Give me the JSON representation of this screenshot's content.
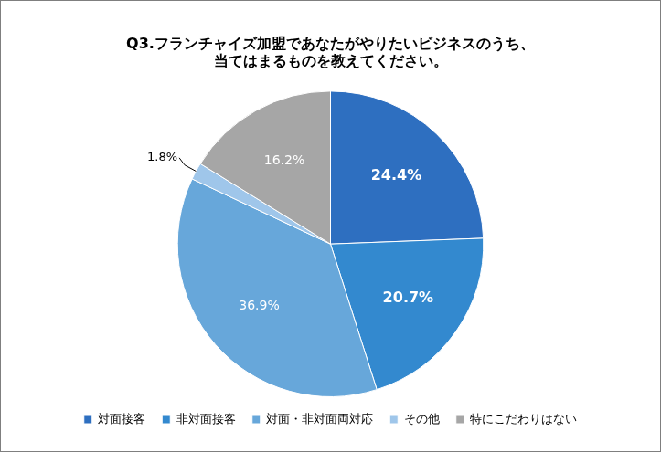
{
  "chart_data": {
    "type": "pie",
    "title": "Q3.フランチャイズ加盟であなたがやりたいビジネスのうち、\n当てはまるものを教えてください。",
    "categories": [
      "対面接客",
      "非対面接客",
      "対面・非対面両対応",
      "その他",
      "特にこだわりはない"
    ],
    "values": [
      24.4,
      20.7,
      36.9,
      1.8,
      16.2
    ],
    "value_labels": [
      "24.4%",
      "20.7%",
      "36.9%",
      "1.8%",
      "16.2%"
    ],
    "colors": [
      "#2e6fc0",
      "#3389cf",
      "#67a7da",
      "#9fc6ea",
      "#a6a6a6"
    ],
    "data_labels": true,
    "legend": "bottom"
  }
}
